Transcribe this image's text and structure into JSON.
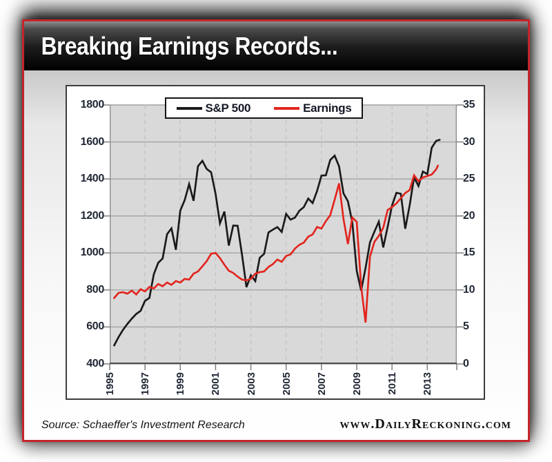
{
  "frame": {
    "accent_color": "#c5242a"
  },
  "header": {
    "title": "Breaking Earnings Records..."
  },
  "footer": {
    "source": "Source: Schaeffer's Investment Research",
    "website": "www.DailyReckoning.com"
  },
  "chart_data": {
    "type": "line",
    "title": "Breaking Earnings Records...",
    "legend": {
      "position": "top-center",
      "items": [
        {
          "label": "S&P 500",
          "color": "#1a1a1a"
        },
        {
          "label": "Earnings",
          "color": "#e2261f"
        }
      ]
    },
    "left_axis": {
      "range": [
        400,
        1800
      ],
      "ticks": [
        1800,
        1600,
        1400,
        1200,
        1000,
        800,
        600,
        400
      ]
    },
    "right_axis": {
      "range": [
        0,
        35
      ],
      "ticks": [
        35,
        30,
        25,
        20,
        15,
        10,
        5,
        0
      ]
    },
    "x_axis": {
      "range": [
        1995,
        2014.67
      ],
      "tick_years": [
        1995,
        1997,
        1999,
        2001,
        2003,
        2005,
        2007,
        2009,
        2011,
        2013
      ],
      "tick_labels": [
        "1995",
        "1997",
        "1999",
        "2001",
        "2003",
        "2005",
        "2007",
        "2009",
        "2011",
        "2013"
      ],
      "gridline_years": [
        1997,
        1999,
        2001,
        2003,
        2005,
        2007,
        2009,
        2011,
        2013
      ],
      "grid": "vertical-dashed"
    },
    "style": {
      "plot_background": "#d9d9d9",
      "h_gridline_color": "#a3a3a3",
      "v_gridline_color": "#c2c2c2",
      "axis_line_color": "#4d4d4d",
      "edge_line_color": "#8f8f8f",
      "tick_color": "#7f7f7f"
    },
    "series": [
      {
        "name": "S&P 500",
        "axis": "left",
        "color": "#1a1a1a",
        "points": [
          [
            1995.25,
            500
          ],
          [
            1995.5,
            545
          ],
          [
            1995.75,
            584
          ],
          [
            1996,
            616
          ],
          [
            1996.25,
            645
          ],
          [
            1996.5,
            670
          ],
          [
            1996.75,
            687
          ],
          [
            1997,
            741
          ],
          [
            1997.25,
            757
          ],
          [
            1997.5,
            885
          ],
          [
            1997.75,
            947
          ],
          [
            1998,
            970
          ],
          [
            1998.25,
            1101
          ],
          [
            1998.5,
            1133
          ],
          [
            1998.75,
            1017
          ],
          [
            1999,
            1229
          ],
          [
            1999.25,
            1286
          ],
          [
            1999.5,
            1372
          ],
          [
            1999.75,
            1282
          ],
          [
            2000,
            1469
          ],
          [
            2000.25,
            1498
          ],
          [
            2000.5,
            1454
          ],
          [
            2000.75,
            1436
          ],
          [
            2001,
            1320
          ],
          [
            2001.25,
            1160
          ],
          [
            2001.5,
            1224
          ],
          [
            2001.75,
            1040
          ],
          [
            2002,
            1148
          ],
          [
            2002.25,
            1147
          ],
          [
            2002.5,
            989
          ],
          [
            2002.75,
            815
          ],
          [
            2003,
            879
          ],
          [
            2003.25,
            848
          ],
          [
            2003.5,
            974
          ],
          [
            2003.75,
            995
          ],
          [
            2004,
            1111
          ],
          [
            2004.25,
            1126
          ],
          [
            2004.5,
            1140
          ],
          [
            2004.75,
            1114
          ],
          [
            2005,
            1211
          ],
          [
            2005.25,
            1180
          ],
          [
            2005.5,
            1191
          ],
          [
            2005.75,
            1228
          ],
          [
            2006,
            1248
          ],
          [
            2006.25,
            1294
          ],
          [
            2006.5,
            1270
          ],
          [
            2006.75,
            1335
          ],
          [
            2007,
            1418
          ],
          [
            2007.25,
            1420
          ],
          [
            2007.5,
            1503
          ],
          [
            2007.75,
            1526
          ],
          [
            2008,
            1468
          ],
          [
            2008.25,
            1322
          ],
          [
            2008.5,
            1280
          ],
          [
            2008.75,
            1166
          ],
          [
            2009,
            903
          ],
          [
            2009.25,
            797
          ],
          [
            2009.5,
            919
          ],
          [
            2009.75,
            1057
          ],
          [
            2010,
            1115
          ],
          [
            2010.25,
            1169
          ],
          [
            2010.5,
            1030
          ],
          [
            2010.75,
            1141
          ],
          [
            2011,
            1257
          ],
          [
            2011.25,
            1325
          ],
          [
            2011.5,
            1320
          ],
          [
            2011.75,
            1131
          ],
          [
            2012,
            1257
          ],
          [
            2012.25,
            1408
          ],
          [
            2012.5,
            1362
          ],
          [
            2012.75,
            1440
          ],
          [
            2013,
            1426
          ],
          [
            2013.25,
            1569
          ],
          [
            2013.5,
            1606
          ],
          [
            2013.7,
            1612
          ]
        ]
      },
      {
        "name": "Earnings",
        "axis": "right",
        "color": "#e2261f",
        "points": [
          [
            1995.25,
            8.9
          ],
          [
            1995.5,
            9.6
          ],
          [
            1995.75,
            9.7
          ],
          [
            1996,
            9.5
          ],
          [
            1996.25,
            9.9
          ],
          [
            1996.5,
            9.4
          ],
          [
            1996.75,
            10.1
          ],
          [
            1997,
            9.8
          ],
          [
            1997.25,
            10.4
          ],
          [
            1997.5,
            10.2
          ],
          [
            1997.75,
            10.8
          ],
          [
            1998,
            10.5
          ],
          [
            1998.25,
            11.0
          ],
          [
            1998.5,
            10.7
          ],
          [
            1998.75,
            11.2
          ],
          [
            1999,
            11.0
          ],
          [
            1999.25,
            11.5
          ],
          [
            1999.5,
            11.4
          ],
          [
            1999.75,
            12.2
          ],
          [
            2000,
            12.5
          ],
          [
            2000.25,
            13.2
          ],
          [
            2000.5,
            13.9
          ],
          [
            2000.75,
            14.9
          ],
          [
            2001,
            15.0
          ],
          [
            2001.25,
            14.3
          ],
          [
            2001.5,
            13.4
          ],
          [
            2001.75,
            12.6
          ],
          [
            2002,
            12.3
          ],
          [
            2002.25,
            11.8
          ],
          [
            2002.5,
            11.4
          ],
          [
            2002.75,
            11.3
          ],
          [
            2003,
            11.5
          ],
          [
            2003.25,
            12.2
          ],
          [
            2003.5,
            12.4
          ],
          [
            2003.75,
            12.5
          ],
          [
            2004,
            13.1
          ],
          [
            2004.25,
            13.5
          ],
          [
            2004.5,
            14.1
          ],
          [
            2004.75,
            13.8
          ],
          [
            2005,
            14.6
          ],
          [
            2005.25,
            14.8
          ],
          [
            2005.5,
            15.6
          ],
          [
            2005.75,
            16.1
          ],
          [
            2006,
            16.4
          ],
          [
            2006.25,
            17.2
          ],
          [
            2006.5,
            17.5
          ],
          [
            2006.75,
            18.5
          ],
          [
            2007,
            18.3
          ],
          [
            2007.25,
            19.3
          ],
          [
            2007.5,
            20.1
          ],
          [
            2007.75,
            22.2
          ],
          [
            2008,
            24.4
          ],
          [
            2008.25,
            19.6
          ],
          [
            2008.5,
            16.2
          ],
          [
            2008.75,
            19.8
          ],
          [
            2009,
            19.2
          ],
          [
            2009.25,
            10.5
          ],
          [
            2009.5,
            5.6
          ],
          [
            2009.75,
            14.5
          ],
          [
            2010,
            16.5
          ],
          [
            2010.25,
            17.3
          ],
          [
            2010.5,
            18.4
          ],
          [
            2010.75,
            20.8
          ],
          [
            2011,
            21.2
          ],
          [
            2011.25,
            21.7
          ],
          [
            2011.5,
            22.4
          ],
          [
            2011.75,
            23.1
          ],
          [
            2012,
            23.5
          ],
          [
            2012.25,
            25.5
          ],
          [
            2012.5,
            24.7
          ],
          [
            2012.75,
            25.2
          ],
          [
            2013,
            25.4
          ],
          [
            2013.25,
            25.6
          ],
          [
            2013.5,
            26.3
          ],
          [
            2013.6,
            26.8
          ]
        ]
      }
    ]
  }
}
